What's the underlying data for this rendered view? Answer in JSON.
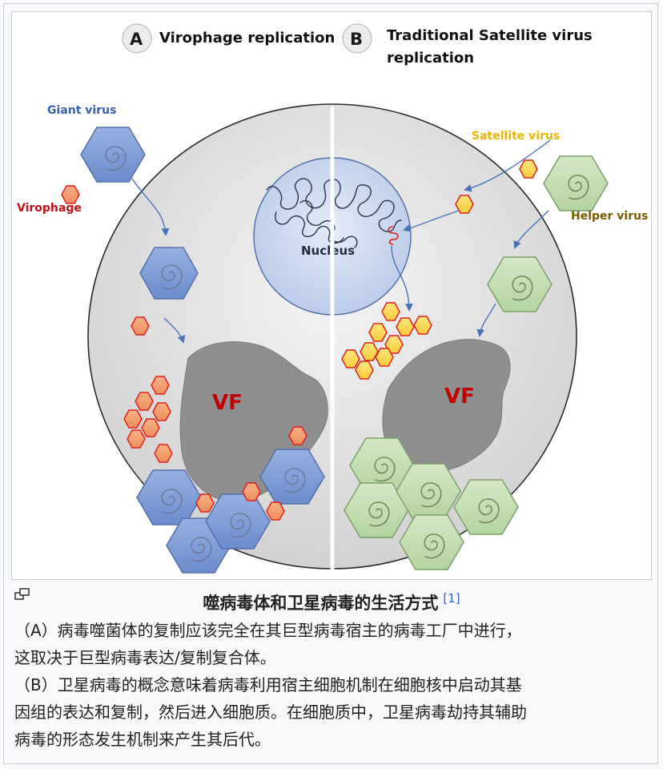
{
  "panels": {
    "a": {
      "badge": "A",
      "title": "Virophage replication"
    },
    "b": {
      "badge": "B",
      "title_line1": "Traditional Satellite virus",
      "title_line2": "replication"
    }
  },
  "labels": {
    "giant_virus": "Giant virus",
    "virophage": "Virophage",
    "satellite_virus": "Satellite virus",
    "helper_virus": "Helper virus",
    "nucleus": "Nucleus",
    "vf_left": "VF",
    "vf_right": "VF"
  },
  "colors": {
    "giant_blue": "#3b5fae",
    "virophage_red": "#c0101a",
    "satellite_gold": "#e8b400",
    "helper_brown": "#7a5c00",
    "vf_red": "#c00000"
  },
  "caption": {
    "title": "噬病毒体和卫星病毒的生活方式",
    "ref": "[1]",
    "para_a_line1": "（A）病毒噬菌体的复制应该完全在其巨型病毒宿主的病毒工厂中进行，",
    "para_a_line2": "这取决于巨型病毒表达/复制复合体。",
    "para_b_line1": "（B）卫星病毒的概念意味着病毒利用宿主细胞机制在细胞核中启动其基",
    "para_b_line2": "因组的表达和复制，然后进入细胞质。在细胞质中，卫星病毒劫持其辅助",
    "para_b_line3": "病毒的形态发生机制来产生其后代。"
  }
}
